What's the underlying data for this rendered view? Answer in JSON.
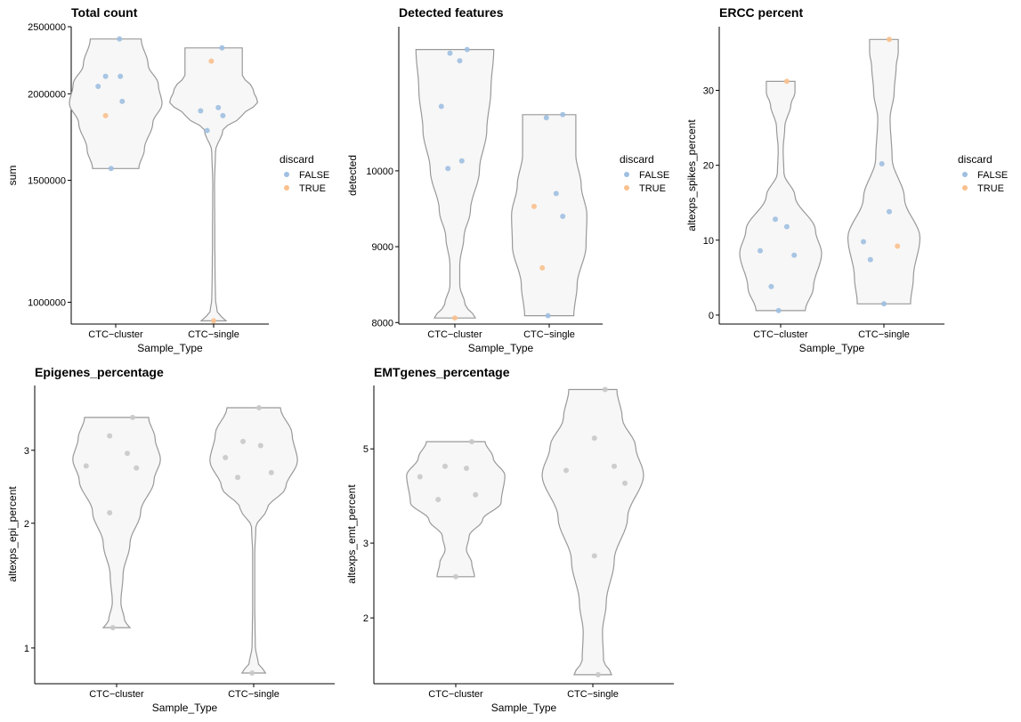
{
  "chart_data": [
    {
      "type": "violin",
      "title": "Total count",
      "xlabel": "Sample_Type",
      "ylabel": "sum",
      "y_scale": "log10",
      "ylim": [
        930000,
        2500000
      ],
      "yticks": [
        1000000,
        1500000,
        2000000,
        2500000
      ],
      "ytick_labels": [
        "1000000",
        "1500000",
        "2000000",
        "2500000"
      ],
      "categories": [
        "CTC−cluster",
        "CTC−single"
      ],
      "legend": {
        "title": "discard",
        "entries": [
          "FALSE",
          "TRUE"
        ],
        "colors": [
          "#9fbfe0",
          "#f9c08d"
        ],
        "placement": "right"
      },
      "violins": [
        {
          "ymin": 1560000,
          "ymax": 2400000,
          "profile": [
            [
              0,
              0.5
            ],
            [
              0.15,
              0.62
            ],
            [
              0.35,
              0.8
            ],
            [
              0.5,
              1.0
            ],
            [
              0.65,
              0.92
            ],
            [
              0.8,
              0.7
            ],
            [
              1,
              0.55
            ]
          ]
        },
        {
          "ymin": 940000,
          "ymax": 2330000,
          "profile": [
            [
              0,
              0.27
            ],
            [
              0.03,
              0.08
            ],
            [
              0.08,
              0.04
            ],
            [
              0.18,
              0.03
            ],
            [
              0.3,
              0.025
            ],
            [
              0.5,
              0.02
            ],
            [
              0.62,
              0.04
            ],
            [
              0.7,
              0.2
            ],
            [
              0.75,
              0.6
            ],
            [
              0.8,
              0.95
            ],
            [
              0.85,
              0.85
            ],
            [
              0.9,
              0.62
            ],
            [
              1,
              0.62
            ]
          ]
        }
      ],
      "points": [
        {
          "group": 0,
          "jitter": 0.08,
          "y": 2400000,
          "discard": "FALSE"
        },
        {
          "group": 0,
          "jitter": -0.22,
          "y": 2120000,
          "discard": "FALSE"
        },
        {
          "group": 0,
          "jitter": 0.1,
          "y": 2120000,
          "discard": "FALSE"
        },
        {
          "group": 0,
          "jitter": -0.38,
          "y": 2050000,
          "discard": "FALSE"
        },
        {
          "group": 0,
          "jitter": 0.14,
          "y": 1950000,
          "discard": "FALSE"
        },
        {
          "group": 0,
          "jitter": -0.22,
          "y": 1860000,
          "discard": "TRUE"
        },
        {
          "group": 0,
          "jitter": -0.1,
          "y": 1560000,
          "discard": "FALSE"
        },
        {
          "group": 1,
          "jitter": 0.18,
          "y": 2330000,
          "discard": "FALSE"
        },
        {
          "group": 1,
          "jitter": -0.05,
          "y": 2230000,
          "discard": "TRUE"
        },
        {
          "group": 1,
          "jitter": 0.1,
          "y": 1910000,
          "discard": "FALSE"
        },
        {
          "group": 1,
          "jitter": -0.28,
          "y": 1890000,
          "discard": "FALSE"
        },
        {
          "group": 1,
          "jitter": 0.2,
          "y": 1860000,
          "discard": "FALSE"
        },
        {
          "group": 1,
          "jitter": -0.14,
          "y": 1770000,
          "discard": "FALSE"
        },
        {
          "group": 1,
          "jitter": 0.0,
          "y": 940000,
          "discard": "TRUE"
        }
      ]
    },
    {
      "type": "violin",
      "title": "Detected features",
      "xlabel": "Sample_Type",
      "ylabel": "detected",
      "y_scale": "linear",
      "ylim": [
        7980,
        11900
      ],
      "yticks": [
        8000,
        9000,
        10000
      ],
      "ytick_labels": [
        "8000",
        "9000",
        "10000"
      ],
      "categories": [
        "CTC−cluster",
        "CTC−single"
      ],
      "legend": {
        "title": "discard",
        "entries": [
          "FALSE",
          "TRUE"
        ],
        "colors": [
          "#9fbfe0",
          "#f9c08d"
        ],
        "placement": "right"
      },
      "violins": [
        {
          "ymin": 8060,
          "ymax": 11600,
          "profile": [
            [
              0,
              0.5
            ],
            [
              0.05,
              0.25
            ],
            [
              0.12,
              0.12
            ],
            [
              0.2,
              0.12
            ],
            [
              0.3,
              0.22
            ],
            [
              0.4,
              0.38
            ],
            [
              0.55,
              0.6
            ],
            [
              0.7,
              0.78
            ],
            [
              0.85,
              0.88
            ],
            [
              1,
              0.95
            ]
          ]
        },
        {
          "ymin": 8090,
          "ymax": 10740,
          "profile": [
            [
              0,
              0.6
            ],
            [
              0.15,
              0.68
            ],
            [
              0.35,
              0.9
            ],
            [
              0.5,
              0.92
            ],
            [
              0.65,
              0.78
            ],
            [
              0.8,
              0.65
            ],
            [
              1,
              0.65
            ]
          ]
        }
      ],
      "points": [
        {
          "group": 0,
          "jitter": 0.3,
          "y": 11600,
          "discard": "FALSE"
        },
        {
          "group": 0,
          "jitter": -0.12,
          "y": 11550,
          "discard": "FALSE"
        },
        {
          "group": 0,
          "jitter": 0.12,
          "y": 11450,
          "discard": "FALSE"
        },
        {
          "group": 0,
          "jitter": -0.33,
          "y": 10850,
          "discard": "FALSE"
        },
        {
          "group": 0,
          "jitter": 0.17,
          "y": 10130,
          "discard": "FALSE"
        },
        {
          "group": 0,
          "jitter": -0.17,
          "y": 10030,
          "discard": "FALSE"
        },
        {
          "group": 0,
          "jitter": 0.0,
          "y": 8060,
          "discard": "TRUE"
        },
        {
          "group": 1,
          "jitter": -0.07,
          "y": 10700,
          "discard": "FALSE"
        },
        {
          "group": 1,
          "jitter": 0.33,
          "y": 10740,
          "discard": "FALSE"
        },
        {
          "group": 1,
          "jitter": 0.17,
          "y": 9700,
          "discard": "FALSE"
        },
        {
          "group": 1,
          "jitter": -0.37,
          "y": 9530,
          "discard": "TRUE"
        },
        {
          "group": 1,
          "jitter": 0.33,
          "y": 9400,
          "discard": "FALSE"
        },
        {
          "group": 1,
          "jitter": -0.17,
          "y": 8720,
          "discard": "TRUE"
        },
        {
          "group": 1,
          "jitter": -0.03,
          "y": 8090,
          "discard": "FALSE"
        }
      ]
    },
    {
      "type": "violin",
      "title": "ERCC percent",
      "xlabel": "Sample_Type",
      "ylabel": "altexps_spikes_percent",
      "y_scale": "linear",
      "ylim": [
        -1.2,
        38.5
      ],
      "yticks": [
        0,
        10,
        20,
        30
      ],
      "ytick_labels": [
        "0",
        "10",
        "20",
        "30"
      ],
      "categories": [
        "CTC−cluster",
        "CTC−single"
      ],
      "legend": {
        "title": "discard",
        "entries": [
          "FALSE",
          "TRUE"
        ],
        "colors": [
          "#9fbfe0",
          "#f9c08d"
        ],
        "placement": "right"
      },
      "violins": [
        {
          "ymin": 0.6,
          "ymax": 31.2,
          "profile": [
            [
              0,
              0.6
            ],
            [
              0.1,
              0.8
            ],
            [
              0.25,
              1.0
            ],
            [
              0.35,
              0.85
            ],
            [
              0.5,
              0.35
            ],
            [
              0.6,
              0.08
            ],
            [
              0.7,
              0.06
            ],
            [
              0.8,
              0.1
            ],
            [
              0.9,
              0.25
            ],
            [
              0.95,
              0.35
            ],
            [
              1,
              0.35
            ]
          ]
        },
        {
          "ymin": 1.5,
          "ymax": 36.8,
          "profile": [
            [
              0,
              0.65
            ],
            [
              0.1,
              0.72
            ],
            [
              0.25,
              0.88
            ],
            [
              0.4,
              0.5
            ],
            [
              0.55,
              0.2
            ],
            [
              0.7,
              0.15
            ],
            [
              0.8,
              0.25
            ],
            [
              0.9,
              0.3
            ],
            [
              0.95,
              0.35
            ],
            [
              1,
              0.35
            ]
          ]
        }
      ],
      "points": [
        {
          "group": 0,
          "jitter": 0.15,
          "y": 31.2,
          "discard": "TRUE"
        },
        {
          "group": 0,
          "jitter": -0.13,
          "y": 12.8,
          "discard": "FALSE"
        },
        {
          "group": 0,
          "jitter": 0.15,
          "y": 11.8,
          "discard": "FALSE"
        },
        {
          "group": 0,
          "jitter": -0.5,
          "y": 8.6,
          "discard": "FALSE"
        },
        {
          "group": 0,
          "jitter": 0.33,
          "y": 8.0,
          "discard": "FALSE"
        },
        {
          "group": 0,
          "jitter": -0.23,
          "y": 3.8,
          "discard": "FALSE"
        },
        {
          "group": 0,
          "jitter": -0.05,
          "y": 0.6,
          "discard": "FALSE"
        },
        {
          "group": 1,
          "jitter": 0.13,
          "y": 36.8,
          "discard": "TRUE"
        },
        {
          "group": 1,
          "jitter": -0.05,
          "y": 20.2,
          "discard": "FALSE"
        },
        {
          "group": 1,
          "jitter": 0.13,
          "y": 13.8,
          "discard": "FALSE"
        },
        {
          "group": 1,
          "jitter": -0.5,
          "y": 9.8,
          "discard": "FALSE"
        },
        {
          "group": 1,
          "jitter": 0.33,
          "y": 9.2,
          "discard": "TRUE"
        },
        {
          "group": 1,
          "jitter": -0.33,
          "y": 7.4,
          "discard": "FALSE"
        },
        {
          "group": 1,
          "jitter": 0.0,
          "y": 1.5,
          "discard": "FALSE"
        }
      ]
    },
    {
      "type": "violin",
      "title": "Epigenes_percentage",
      "xlabel": "Sample_Type",
      "ylabel": "altexps_epi_percent",
      "y_scale": "log10",
      "ylim": [
        0.82,
        4.3
      ],
      "yticks": [
        1,
        2,
        3
      ],
      "ytick_labels": [
        "1",
        "2",
        "3"
      ],
      "categories": [
        "CTC−cluster",
        "CTC−single"
      ],
      "point_color": "#c8c8c8",
      "violins": [
        {
          "ymin": 1.12,
          "ymax": 3.6,
          "profile": [
            [
              0,
              0.25
            ],
            [
              0.03,
              0.15
            ],
            [
              0.12,
              0.08
            ],
            [
              0.25,
              0.12
            ],
            [
              0.4,
              0.25
            ],
            [
              0.55,
              0.45
            ],
            [
              0.7,
              0.7
            ],
            [
              0.8,
              0.82
            ],
            [
              0.9,
              0.72
            ],
            [
              1,
              0.6
            ]
          ]
        },
        {
          "ymin": 0.87,
          "ymax": 3.8,
          "profile": [
            [
              0,
              0.22
            ],
            [
              0.04,
              0.08
            ],
            [
              0.1,
              0.03
            ],
            [
              0.25,
              0.02
            ],
            [
              0.45,
              0.02
            ],
            [
              0.55,
              0.04
            ],
            [
              0.62,
              0.25
            ],
            [
              0.7,
              0.6
            ],
            [
              0.8,
              0.82
            ],
            [
              0.9,
              0.72
            ],
            [
              1,
              0.5
            ]
          ]
        }
      ],
      "points": [
        {
          "group": 0,
          "jitter": 0.3,
          "y": 3.6,
          "discard": "FALSE"
        },
        {
          "group": 0,
          "jitter": -0.13,
          "y": 3.25,
          "discard": "FALSE"
        },
        {
          "group": 0,
          "jitter": 0.2,
          "y": 2.95,
          "discard": "FALSE"
        },
        {
          "group": 0,
          "jitter": -0.57,
          "y": 2.75,
          "discard": "FALSE"
        },
        {
          "group": 0,
          "jitter": 0.37,
          "y": 2.72,
          "discard": "FALSE"
        },
        {
          "group": 0,
          "jitter": -0.13,
          "y": 2.12,
          "discard": "FALSE"
        },
        {
          "group": 0,
          "jitter": -0.07,
          "y": 1.12,
          "discard": "FALSE"
        },
        {
          "group": 1,
          "jitter": 0.1,
          "y": 3.8,
          "discard": "FALSE"
        },
        {
          "group": 1,
          "jitter": -0.2,
          "y": 3.15,
          "discard": "FALSE"
        },
        {
          "group": 1,
          "jitter": 0.13,
          "y": 3.08,
          "discard": "FALSE"
        },
        {
          "group": 1,
          "jitter": -0.53,
          "y": 2.88,
          "discard": "FALSE"
        },
        {
          "group": 1,
          "jitter": 0.33,
          "y": 2.65,
          "discard": "FALSE"
        },
        {
          "group": 1,
          "jitter": -0.3,
          "y": 2.58,
          "discard": "FALSE"
        },
        {
          "group": 1,
          "jitter": -0.03,
          "y": 0.87,
          "discard": "FALSE"
        }
      ]
    },
    {
      "type": "violin",
      "title": "EMTgenes_percentage",
      "xlabel": "Sample_Type",
      "ylabel": "altexps_emt_percent",
      "y_scale": "log10",
      "ylim": [
        1.4,
        7.05
      ],
      "yticks": [
        2,
        3,
        5
      ],
      "ytick_labels": [
        "2",
        "3",
        "5"
      ],
      "categories": [
        "CTC−cluster",
        "CTC−single"
      ],
      "point_color": "#c8c8c8",
      "violins": [
        {
          "ymin": 2.5,
          "ymax": 5.2,
          "profile": [
            [
              0,
              0.35
            ],
            [
              0.1,
              0.3
            ],
            [
              0.2,
              0.2
            ],
            [
              0.3,
              0.25
            ],
            [
              0.42,
              0.5
            ],
            [
              0.55,
              0.85
            ],
            [
              0.75,
              0.92
            ],
            [
              0.88,
              0.7
            ],
            [
              1,
              0.55
            ]
          ]
        },
        {
          "ymin": 1.47,
          "ymax": 6.9,
          "profile": [
            [
              0,
              0.35
            ],
            [
              0.05,
              0.2
            ],
            [
              0.15,
              0.18
            ],
            [
              0.25,
              0.25
            ],
            [
              0.4,
              0.4
            ],
            [
              0.55,
              0.65
            ],
            [
              0.7,
              0.95
            ],
            [
              0.8,
              0.8
            ],
            [
              0.9,
              0.55
            ],
            [
              1,
              0.45
            ]
          ]
        }
      ],
      "points": [
        {
          "group": 0,
          "jitter": 0.3,
          "y": 5.2,
          "discard": "FALSE"
        },
        {
          "group": 0,
          "jitter": -0.2,
          "y": 4.55,
          "discard": "FALSE"
        },
        {
          "group": 0,
          "jitter": 0.2,
          "y": 4.5,
          "discard": "FALSE"
        },
        {
          "group": 0,
          "jitter": -0.67,
          "y": 4.3,
          "discard": "FALSE"
        },
        {
          "group": 0,
          "jitter": 0.37,
          "y": 3.9,
          "discard": "FALSE"
        },
        {
          "group": 0,
          "jitter": -0.33,
          "y": 3.8,
          "discard": "FALSE"
        },
        {
          "group": 0,
          "jitter": 0.0,
          "y": 2.5,
          "discard": "FALSE"
        },
        {
          "group": 1,
          "jitter": 0.23,
          "y": 6.9,
          "discard": "FALSE"
        },
        {
          "group": 1,
          "jitter": 0.03,
          "y": 5.3,
          "discard": "FALSE"
        },
        {
          "group": 1,
          "jitter": 0.4,
          "y": 4.55,
          "discard": "FALSE"
        },
        {
          "group": 1,
          "jitter": -0.5,
          "y": 4.45,
          "discard": "FALSE"
        },
        {
          "group": 1,
          "jitter": 0.6,
          "y": 4.15,
          "discard": "FALSE"
        },
        {
          "group": 1,
          "jitter": 0.03,
          "y": 2.8,
          "discard": "FALSE"
        },
        {
          "group": 1,
          "jitter": 0.1,
          "y": 1.47,
          "discard": "FALSE"
        }
      ]
    }
  ]
}
